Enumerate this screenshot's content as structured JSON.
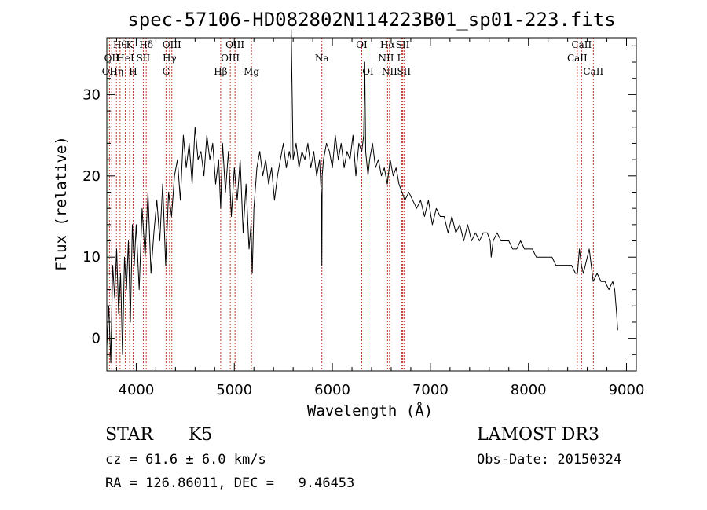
{
  "chart_data": {
    "type": "line",
    "title": "spec-57106-HD082802N114223B01_sp01-223.fits",
    "xlabel": "Wavelength (Å)",
    "ylabel": "Flux (relative)",
    "xlim": [
      3700,
      9100
    ],
    "ylim": [
      -4,
      37
    ],
    "x_ticks": [
      4000,
      5000,
      6000,
      7000,
      8000,
      9000
    ],
    "y_ticks": [
      0,
      10,
      20,
      30
    ],
    "grid": false,
    "series": [
      {
        "x": [
          3700,
          3720,
          3740,
          3760,
          3780,
          3800,
          3820,
          3840,
          3860,
          3880,
          3900,
          3920,
          3940,
          3960,
          3980,
          4000,
          4030,
          4060,
          4090,
          4120,
          4150,
          4180,
          4210,
          4240,
          4270,
          4300,
          4330,
          4360,
          4390,
          4420,
          4450,
          4480,
          4510,
          4540,
          4570,
          4600,
          4630,
          4660,
          4690,
          4720,
          4750,
          4780,
          4810,
          4840,
          4861,
          4880,
          4910,
          4940,
          4970,
          5000,
          5030,
          5060,
          5090,
          5120,
          5150,
          5170,
          5183,
          5200,
          5230,
          5260,
          5290,
          5320,
          5350,
          5380,
          5410,
          5440,
          5470,
          5500,
          5530,
          5560,
          5577,
          5580,
          5600,
          5630,
          5660,
          5690,
          5720,
          5750,
          5780,
          5810,
          5840,
          5870,
          5890,
          5893,
          5896,
          5910,
          5940,
          5970,
          6000,
          6030,
          6060,
          6090,
          6120,
          6150,
          6180,
          6210,
          6240,
          6270,
          6300,
          6320,
          6330,
          6340,
          6364,
          6380,
          6410,
          6440,
          6470,
          6500,
          6530,
          6560,
          6590,
          6620,
          6650,
          6680,
          6710,
          6740,
          6780,
          6820,
          6860,
          6900,
          6940,
          6980,
          7020,
          7060,
          7100,
          7140,
          7180,
          7220,
          7260,
          7300,
          7340,
          7380,
          7420,
          7460,
          7500,
          7540,
          7580,
          7610,
          7620,
          7640,
          7680,
          7720,
          7760,
          7800,
          7840,
          7880,
          7920,
          7960,
          8000,
          8040,
          8080,
          8120,
          8160,
          8200,
          8240,
          8280,
          8320,
          8360,
          8400,
          8440,
          8480,
          8500,
          8520,
          8540,
          8560,
          8580,
          8620,
          8660,
          8700,
          8740,
          8780,
          8820,
          8860,
          8880,
          8900,
          8910
        ],
        "y": [
          -1,
          4,
          -3,
          9,
          5,
          11,
          3,
          8,
          -2,
          10,
          6,
          12,
          2,
          14,
          9,
          14,
          6,
          16,
          10,
          18,
          8,
          13,
          17,
          12,
          19,
          9,
          18,
          15,
          20,
          22,
          17,
          25,
          21,
          24,
          19,
          26,
          22,
          23,
          20,
          25,
          22,
          24,
          19,
          22,
          16,
          24,
          18,
          23,
          15,
          21,
          17,
          22,
          13,
          19,
          11,
          14,
          8,
          16,
          21,
          23,
          20,
          22,
          19,
          21,
          17,
          20,
          22,
          24,
          21,
          23,
          22,
          38,
          22,
          24,
          21,
          23,
          22,
          24,
          21,
          23,
          20,
          22,
          17,
          9,
          20,
          22,
          24,
          23,
          21,
          25,
          22,
          24,
          21,
          23,
          22,
          25,
          20,
          24,
          23,
          25,
          34,
          23,
          20,
          22,
          24,
          21,
          22,
          20,
          21,
          19,
          22,
          20,
          21,
          19,
          18,
          17,
          18,
          17,
          16,
          17,
          15,
          17,
          14,
          16,
          15,
          15,
          13,
          15,
          13,
          14,
          12,
          14,
          12,
          13,
          12,
          13,
          13,
          12,
          10,
          12,
          13,
          12,
          12,
          12,
          11,
          11,
          12,
          11,
          11,
          11,
          10,
          10,
          10,
          10,
          10,
          9,
          9,
          9,
          9,
          9,
          8,
          8,
          11,
          9,
          8,
          9,
          11,
          7,
          8,
          7,
          7,
          6,
          7,
          6,
          3,
          1
        ]
      }
    ],
    "line_markers": [
      {
        "x": 3727,
        "label": "OII",
        "row": 2
      },
      {
        "x": 3750,
        "label": "OII",
        "row": 1
      },
      {
        "x": 3798,
        "label": "Hη",
        "row": 2
      },
      {
        "x": 3835,
        "label": "Hθ",
        "row": 0
      },
      {
        "x": 3889,
        "label": "HeI",
        "row": 1
      },
      {
        "x": 3933,
        "label": "K",
        "row": 0
      },
      {
        "x": 3968,
        "label": "H",
        "row": 2
      },
      {
        "x": 4072,
        "label": "SII",
        "row": 1
      },
      {
        "x": 4102,
        "label": "Hδ",
        "row": 0
      },
      {
        "x": 4304,
        "label": "G",
        "row": 2
      },
      {
        "x": 4340,
        "label": "Hγ",
        "row": 1
      },
      {
        "x": 4363,
        "label": "OIII",
        "row": 0
      },
      {
        "x": 4861,
        "label": "Hβ",
        "row": 2
      },
      {
        "x": 4959,
        "label": "OIII",
        "row": 1
      },
      {
        "x": 5007,
        "label": "OIII",
        "row": 0
      },
      {
        "x": 5175,
        "label": "Mg",
        "row": 2
      },
      {
        "x": 5893,
        "label": "Na",
        "row": 1
      },
      {
        "x": 6300,
        "label": "OI",
        "row": 0
      },
      {
        "x": 6364,
        "label": "OI",
        "row": 2
      },
      {
        "x": 6548,
        "label": "NII",
        "row": 1
      },
      {
        "x": 6563,
        "label": "Hα",
        "row": 0
      },
      {
        "x": 6583,
        "label": "NII",
        "row": 2
      },
      {
        "x": 6708,
        "label": "Li",
        "row": 1
      },
      {
        "x": 6717,
        "label": "SII",
        "row": 0
      },
      {
        "x": 6731,
        "label": "SII",
        "row": 2
      },
      {
        "x": 8498,
        "label": "CaII",
        "row": 1
      },
      {
        "x": 8542,
        "label": "CaII",
        "row": 0
      },
      {
        "x": 8662,
        "label": "CaII",
        "row": 2
      }
    ],
    "annotations": {
      "class_label": "STAR",
      "subclass": "K5",
      "survey": "LAMOST DR3",
      "redshift": "cz = 61.6 ± 6.0 km/s",
      "obs_date": "Obs-Date: 20150324",
      "coords": "RA = 126.86011, DEC =   9.46453"
    }
  }
}
